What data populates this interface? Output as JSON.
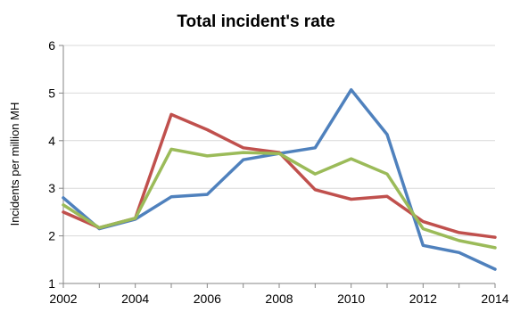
{
  "chart_data": {
    "type": "line",
    "title": "Total incident's rate",
    "xlabel": "",
    "ylabel": "Incidents per million MH",
    "x": [
      2002,
      2003,
      2004,
      2005,
      2006,
      2007,
      2008,
      2009,
      2010,
      2011,
      2012,
      2013,
      2014
    ],
    "x_tick_labels": [
      "2002",
      "2004",
      "2006",
      "2008",
      "2010",
      "2012",
      "2014"
    ],
    "x_tick_values": [
      2002,
      2004,
      2006,
      2008,
      2010,
      2012,
      2014
    ],
    "y_tick_labels": [
      "1",
      "2",
      "3",
      "4",
      "5",
      "6"
    ],
    "y_tick_values": [
      1,
      2,
      3,
      4,
      5,
      6
    ],
    "xlim": [
      2002,
      2014
    ],
    "ylim": [
      1,
      6
    ],
    "grid": "horizontal",
    "legend": "none",
    "series": [
      {
        "color": "#4F81BD",
        "values": [
          2.8,
          2.15,
          2.35,
          2.82,
          2.87,
          3.6,
          3.73,
          3.85,
          5.07,
          4.13,
          1.8,
          1.65,
          1.3
        ]
      },
      {
        "color": "#C0504D",
        "values": [
          2.5,
          2.17,
          2.37,
          4.55,
          4.23,
          3.85,
          3.75,
          2.97,
          2.77,
          2.83,
          2.3,
          2.07,
          1.97
        ]
      },
      {
        "color": "#9BBB59",
        "values": [
          2.65,
          2.17,
          2.37,
          3.82,
          3.68,
          3.75,
          3.73,
          3.3,
          3.62,
          3.3,
          2.15,
          1.9,
          1.75
        ]
      }
    ]
  }
}
